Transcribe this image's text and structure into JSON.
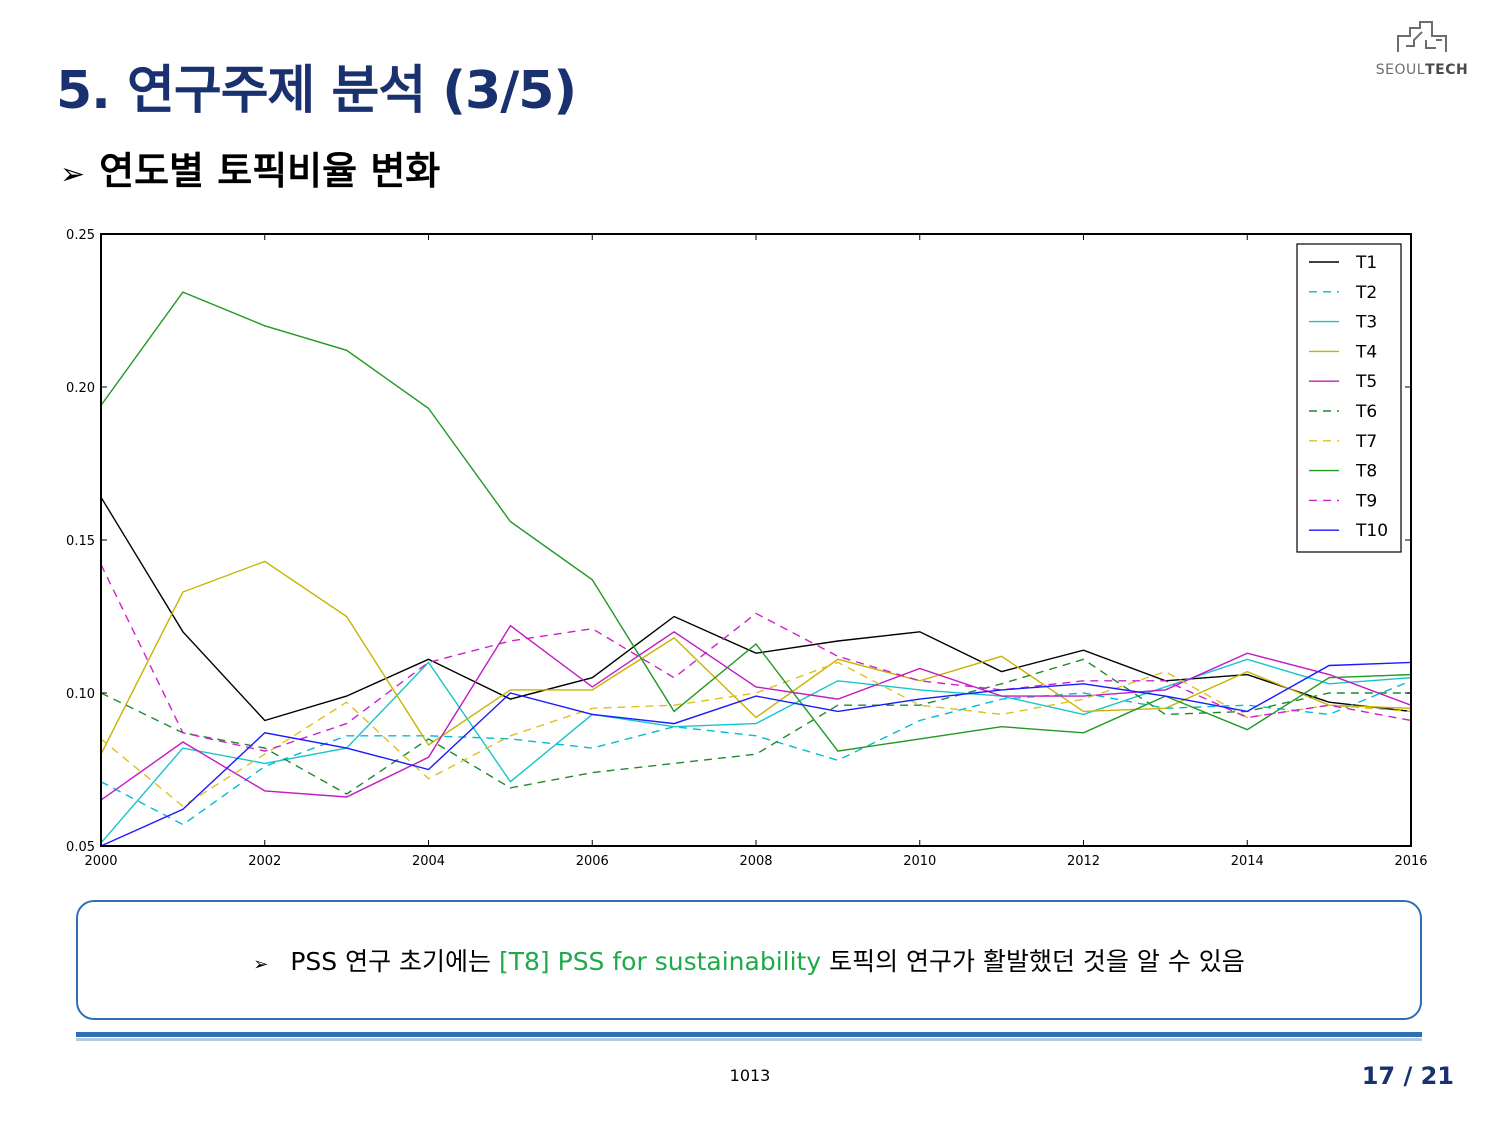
{
  "slide": {
    "title": "5. 연구주제 분석 (3/5)",
    "subtitle_marker": "➢",
    "subtitle": "연도별 토픽비율 변화",
    "logo": {
      "text_light": "SEOUL",
      "text_bold": "TECH"
    },
    "note": {
      "bullet": "➢",
      "before": "PSS 연구 초기에는",
      "highlight": "[T8] PSS for sustainability",
      "after": "토픽의 연구가 활발했던 것을 알 수 있음",
      "highlight_color": "#1faa4a"
    },
    "center_number": "1013",
    "page": "17 / 21"
  },
  "chart_data": {
    "type": "line",
    "x": [
      2000,
      2001,
      2002,
      2003,
      2004,
      2005,
      2006,
      2007,
      2008,
      2009,
      2010,
      2011,
      2012,
      2013,
      2014,
      2015,
      2016
    ],
    "xticks": [
      "2000",
      "2002",
      "2004",
      "2006",
      "2008",
      "2010",
      "2012",
      "2014",
      "2016"
    ],
    "yticks": [
      "0.05",
      "0.10",
      "0.15",
      "0.20",
      "0.25"
    ],
    "xlim": [
      2000,
      2016
    ],
    "ylim": [
      0.05,
      0.25
    ],
    "legend_position": "top-right",
    "grid": false,
    "series": [
      {
        "name": "T1",
        "color": "#000000",
        "dash": "solid",
        "values": [
          0.164,
          0.12,
          0.091,
          0.099,
          0.111,
          0.098,
          0.105,
          0.125,
          0.113,
          0.117,
          0.12,
          0.107,
          0.114,
          0.104,
          0.106,
          0.097,
          0.094
        ]
      },
      {
        "name": "T2",
        "color": "#00bcd4",
        "dash": "dashed",
        "values": [
          0.071,
          0.057,
          0.076,
          0.086,
          0.086,
          0.085,
          0.082,
          0.089,
          0.086,
          0.078,
          0.091,
          0.098,
          0.1,
          0.095,
          0.096,
          0.093,
          0.104
        ]
      },
      {
        "name": "T3",
        "color": "#17c5c9",
        "dash": "solid",
        "values": [
          0.051,
          0.082,
          0.077,
          0.082,
          0.11,
          0.071,
          0.093,
          0.089,
          0.09,
          0.104,
          0.101,
          0.099,
          0.093,
          0.102,
          0.111,
          0.103,
          0.105
        ]
      },
      {
        "name": "T4",
        "color": "#c8b400",
        "dash": "solid",
        "values": [
          0.08,
          0.133,
          0.143,
          0.125,
          0.083,
          0.101,
          0.101,
          0.118,
          0.092,
          0.111,
          0.104,
          0.112,
          0.094,
          0.095,
          0.107,
          0.096,
          0.095
        ]
      },
      {
        "name": "T5",
        "color": "#c21bc2",
        "dash": "solid",
        "values": [
          0.065,
          0.084,
          0.068,
          0.066,
          0.079,
          0.122,
          0.102,
          0.12,
          0.102,
          0.098,
          0.108,
          0.099,
          0.099,
          0.101,
          0.113,
          0.106,
          0.096
        ]
      },
      {
        "name": "T6",
        "color": "#1f8a2e",
        "dash": "dashed",
        "values": [
          0.1,
          0.087,
          0.082,
          0.067,
          0.085,
          0.069,
          0.074,
          0.077,
          0.08,
          0.096,
          0.096,
          0.103,
          0.111,
          0.093,
          0.094,
          0.1,
          0.1
        ]
      },
      {
        "name": "T7",
        "color": "#e0c020",
        "dash": "dashed",
        "values": [
          0.085,
          0.063,
          0.08,
          0.097,
          0.072,
          0.086,
          0.095,
          0.096,
          0.1,
          0.11,
          0.096,
          0.093,
          0.098,
          0.107,
          0.092,
          0.096,
          0.094
        ]
      },
      {
        "name": "T8",
        "color": "#229922",
        "dash": "solid",
        "values": [
          0.194,
          0.231,
          0.22,
          0.212,
          0.193,
          0.156,
          0.137,
          0.094,
          0.116,
          0.081,
          0.085,
          0.089,
          0.087,
          0.099,
          0.088,
          0.105,
          0.106
        ]
      },
      {
        "name": "T9",
        "color": "#cc22cc",
        "dash": "dashed",
        "values": [
          0.142,
          0.087,
          0.081,
          0.09,
          0.11,
          0.117,
          0.121,
          0.105,
          0.126,
          0.112,
          0.104,
          0.101,
          0.104,
          0.104,
          0.092,
          0.096,
          0.091
        ]
      },
      {
        "name": "T10",
        "color": "#1a1aff",
        "dash": "solid",
        "values": [
          0.05,
          0.062,
          0.087,
          0.082,
          0.075,
          0.1,
          0.093,
          0.09,
          0.099,
          0.094,
          0.098,
          0.101,
          0.103,
          0.099,
          0.094,
          0.109,
          0.11
        ]
      }
    ]
  }
}
